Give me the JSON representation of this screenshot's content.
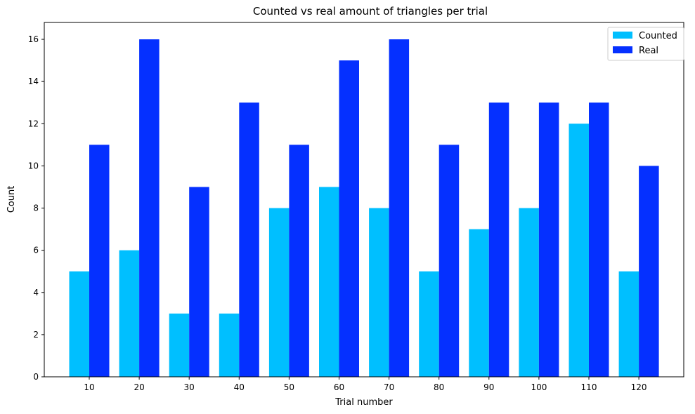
{
  "chart_data": {
    "type": "bar",
    "title": "Counted vs real amount of triangles per trial",
    "xlabel": "Trial number",
    "ylabel": "Count",
    "categories": [
      "10",
      "20",
      "30",
      "40",
      "50",
      "60",
      "70",
      "80",
      "90",
      "100",
      "110",
      "120"
    ],
    "series": [
      {
        "name": "Counted",
        "color": "#00BFFF",
        "values": [
          5,
          6,
          3,
          3,
          8,
          9,
          8,
          5,
          7,
          8,
          12,
          5
        ]
      },
      {
        "name": "Real",
        "color": "#0530FF",
        "values": [
          11,
          16,
          9,
          13,
          11,
          15,
          16,
          11,
          13,
          13,
          13,
          10
        ]
      }
    ],
    "ylim": [
      0,
      16.8
    ],
    "yticks": [
      0,
      2,
      4,
      6,
      8,
      10,
      12,
      14,
      16
    ],
    "grid": false,
    "legend_position": "top-right"
  }
}
